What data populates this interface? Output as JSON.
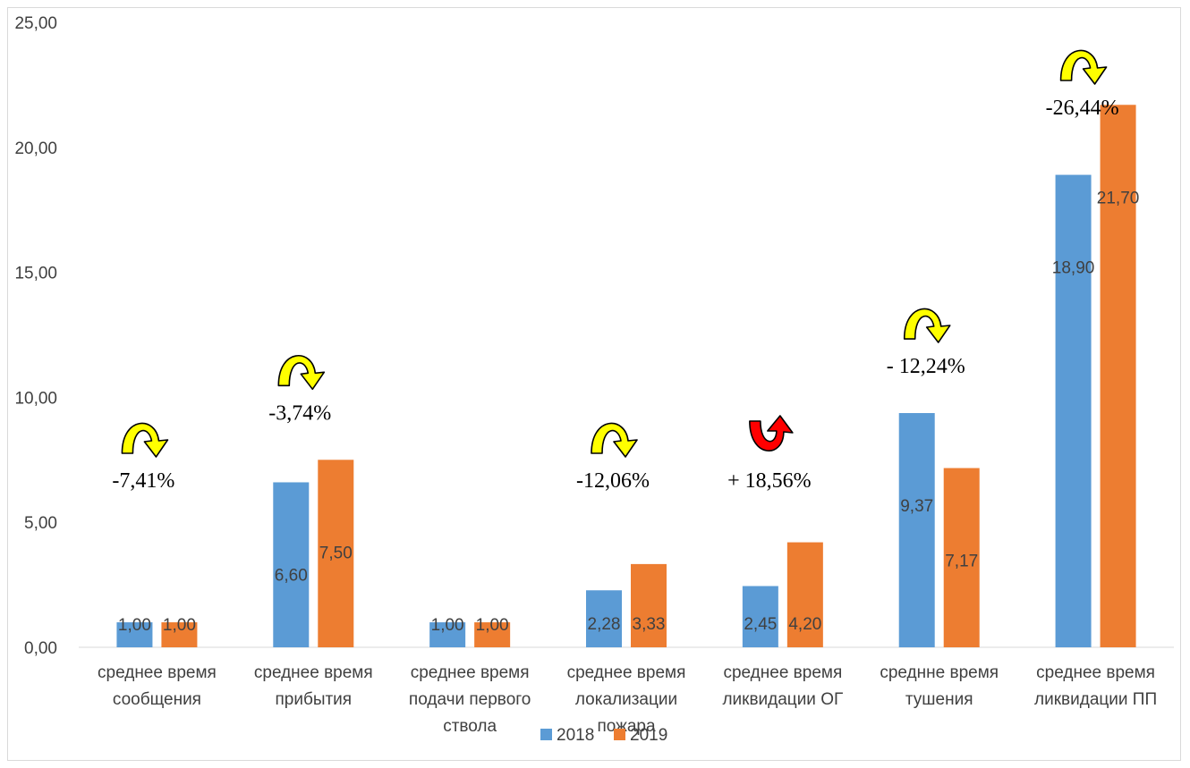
{
  "chart_data": {
    "type": "bar",
    "title": "",
    "xlabel": "",
    "ylabel": "",
    "ylim": [
      0,
      25
    ],
    "ytick_step": 5,
    "ytick_labels": [
      "0,00",
      "5,00",
      "10,00",
      "15,00",
      "20,00",
      "25,00"
    ],
    "grid": false,
    "legend_position": "bottom",
    "categories": [
      [
        "среднее время",
        "сообщения"
      ],
      [
        "среднее время",
        "прибытия"
      ],
      [
        "среднее время",
        "подачи первого",
        "ствола"
      ],
      [
        "среднее время",
        "локализации",
        "пожара"
      ],
      [
        "среднее время",
        "ликвидации ОГ"
      ],
      [
        "среднне время",
        "тушения"
      ],
      [
        "среднее время",
        "ликвидации ПП"
      ]
    ],
    "series": [
      {
        "name": "2018",
        "color": "#5b9bd5",
        "values": [
          1.0,
          6.6,
          1.0,
          2.28,
          2.45,
          9.37,
          18.9
        ],
        "labels": [
          "1,00",
          "6,60",
          "1,00",
          "2,28",
          "2,45",
          "9,37",
          "18,90"
        ]
      },
      {
        "name": "2019",
        "color": "#ed7d31",
        "values": [
          1.0,
          7.5,
          1.0,
          3.33,
          4.2,
          7.17,
          21.7
        ],
        "labels": [
          "1,00",
          "7,50",
          "1,00",
          "3,33",
          "4,20",
          "7,17",
          "21,70"
        ]
      }
    ],
    "annotations": [
      {
        "category_index": 0,
        "text": "-7,41%",
        "direction": "down",
        "color": "#ffff00"
      },
      {
        "category_index": 1,
        "text": "-3,74%",
        "direction": "down",
        "color": "#ffff00"
      },
      {
        "category_index": 3,
        "text": "-12,06%",
        "direction": "down",
        "color": "#ffff00"
      },
      {
        "category_index": 4,
        "text": "+ 18,56%",
        "direction": "up",
        "color": "#ff0000"
      },
      {
        "category_index": 5,
        "text": "- 12,24%",
        "direction": "down",
        "color": "#ffff00"
      },
      {
        "category_index": 6,
        "text": "-26,44%",
        "direction": "down",
        "color": "#ffff00"
      }
    ]
  }
}
